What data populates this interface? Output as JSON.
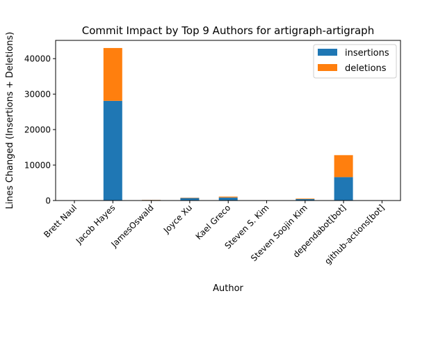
{
  "chart_data": {
    "type": "bar",
    "stacked": true,
    "title": "Commit Impact by Top 9 Authors for artigraph-artigraph",
    "xlabel": "Author",
    "ylabel": "Lines Changed (Insertions + Deletions)",
    "ylim": [
      0,
      45150
    ],
    "yticks": [
      0,
      10000,
      20000,
      30000,
      40000
    ],
    "ytick_labels": [
      "0",
      "10000",
      "20000",
      "30000",
      "40000"
    ],
    "categories": [
      "Brett Naul",
      "Jacob Hayes",
      "JamesOswald",
      "Joyce Xu",
      "Kael Greco",
      "Steven S. Kim",
      "Steven Soojin Kim",
      "dependabot[bot]",
      "github-actions[bot]"
    ],
    "series": [
      {
        "name": "insertions",
        "color": "#1f77b4",
        "values": [
          40,
          28100,
          150,
          700,
          850,
          10,
          400,
          6600,
          15
        ]
      },
      {
        "name": "deletions",
        "color": "#ff7f0e",
        "values": [
          10,
          14900,
          50,
          100,
          250,
          5,
          150,
          6200,
          5
        ]
      }
    ],
    "legend": {
      "position": "top-right"
    },
    "grid": false
  }
}
